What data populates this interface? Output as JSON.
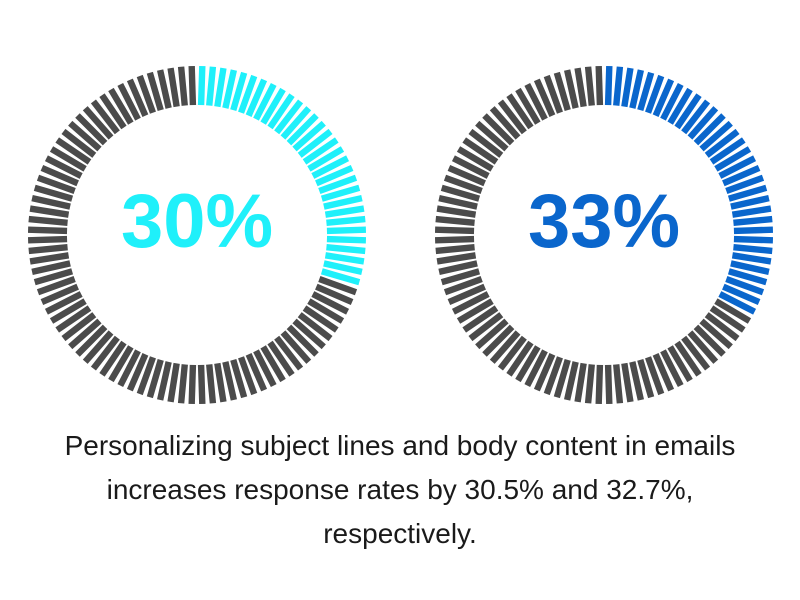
{
  "chart_data": [
    {
      "type": "donut",
      "values": [
        30
      ],
      "value_labels": [
        "30%"
      ],
      "color": "#1ff0fa",
      "track_color": "#4b4b4b"
    },
    {
      "type": "donut",
      "values": [
        33
      ],
      "value_labels": [
        "33%"
      ],
      "color": "#0a66cc",
      "track_color": "#4b4b4b"
    }
  ],
  "caption": "Personalizing subject lines and body content in emails increases response rates by 30.5% and 32.7%, respectively."
}
